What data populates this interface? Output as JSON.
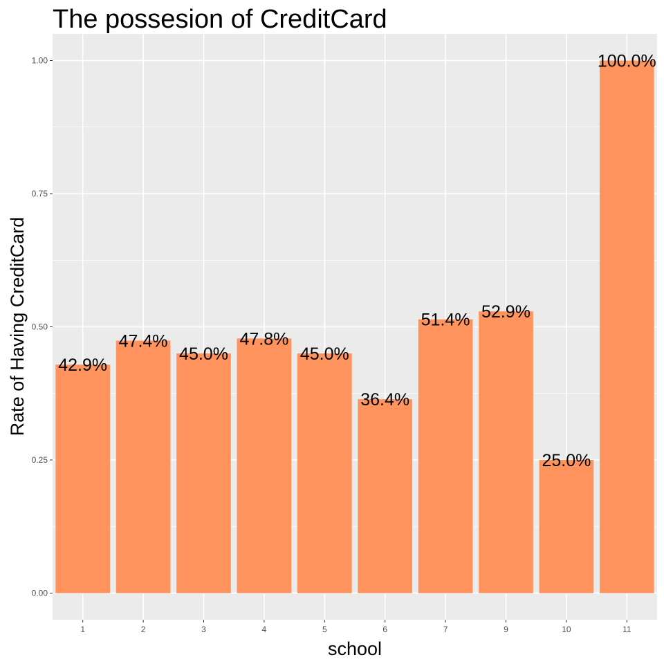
{
  "chart_data": {
    "type": "bar",
    "title": "The possesion of CreditCard",
    "xlabel": "school",
    "ylabel": "Rate of Having CreditCard",
    "categories": [
      "1",
      "2",
      "3",
      "4",
      "5",
      "6",
      "7",
      "9",
      "10",
      "11"
    ],
    "values": [
      0.429,
      0.474,
      0.45,
      0.478,
      0.45,
      0.364,
      0.514,
      0.529,
      0.25,
      1.0
    ],
    "data_labels": [
      "42.9%",
      "47.4%",
      "45.0%",
      "47.8%",
      "45.0%",
      "36.4%",
      "51.4%",
      "52.9%",
      "25.0%",
      "100.0%"
    ],
    "yticks": [
      "0.00",
      "0.25",
      "0.50",
      "0.75",
      "1.00"
    ],
    "ylim": [
      -0.05,
      1.05
    ],
    "bar_color": "#FF935D",
    "panel_background": "#EBEBEB",
    "grid_color": "#FFFFFF",
    "grid": true,
    "legend": "none"
  }
}
